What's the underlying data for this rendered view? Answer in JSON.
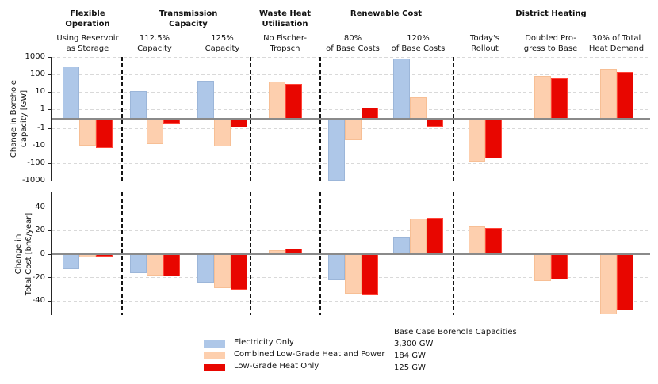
{
  "colors": {
    "electricity_only": "#aec7e8",
    "electricity_only_edge": "#9cb6d9",
    "combined_heat_power": "#fdcfae",
    "combined_heat_power_edge": "#f7bf95",
    "low_grade_heat": "#e80600",
    "low_grade_heat_edge": "#ff4438",
    "grid": "#d9d9d9",
    "zero_line": "#8a8a8a",
    "separator": "#141414"
  },
  "sections": [
    {
      "title": [
        "Flexible",
        "Operation"
      ]
    },
    {
      "title": [
        "Transmission",
        "Capacity"
      ]
    },
    {
      "title": [
        "Waste Heat",
        "Utilisation"
      ]
    },
    {
      "title": [
        "Renewable Cost"
      ]
    },
    {
      "title": [
        "District Heating"
      ]
    }
  ],
  "categories": [
    {
      "label": [
        "Using Reservoir",
        "as Storage"
      ]
    },
    {
      "label": [
        "112.5%",
        "Capacity"
      ]
    },
    {
      "label": [
        "125%",
        "Capacity"
      ]
    },
    {
      "label": [
        "No Fischer-",
        "Tropsch"
      ]
    },
    {
      "label": [
        "80%",
        "of Base Costs"
      ]
    },
    {
      "label": [
        "120%",
        "of Base Costs"
      ]
    },
    {
      "label": [
        "Today's",
        "Rollout"
      ]
    },
    {
      "label": [
        "Doubled Pro-",
        "gress to Base"
      ]
    },
    {
      "label": [
        "30% of Total",
        "Heat Demand"
      ]
    }
  ],
  "chart_data": [
    {
      "type": "bar",
      "ylabel": [
        "Change in Borehole",
        "Capacity [GW]"
      ],
      "scale": "symlog",
      "linthresh": 1,
      "ylim": [
        -1000,
        1000
      ],
      "yticks": [
        1000,
        100,
        10,
        1,
        -1,
        -10,
        -100,
        -1000
      ],
      "grid": true,
      "categories": [
        "Using Reservoir as Storage",
        "112.5% Capacity",
        "125% Capacity",
        "No Fischer-Tropsch",
        "80% of Base Costs",
        "120% of Base Costs",
        "Today's Rollout",
        "Doubled Progress to Base",
        "30% of Total Heat Demand"
      ],
      "series": [
        {
          "name": "Electricity Only",
          "values": [
            300,
            11,
            45,
            null,
            -950,
            800,
            null,
            null,
            null
          ]
        },
        {
          "name": "Combined Low-Grade Heat and Power",
          "values": [
            -10,
            -8,
            -11,
            40,
            -5,
            5,
            -85,
            80,
            200
          ]
        },
        {
          "name": "Low-Grade Heat Only",
          "values": [
            -13,
            -0.5,
            -0.9,
            28,
            1.2,
            -0.8,
            -55,
            60,
            140
          ]
        }
      ]
    },
    {
      "type": "bar",
      "ylabel": [
        "Change in",
        "Total Cost [bn€/year]"
      ],
      "scale": "linear",
      "ylim": [
        -52.5,
        52.5
      ],
      "yticks": [
        40,
        20,
        0,
        -20,
        -40
      ],
      "grid": true,
      "categories": [
        "Using Reservoir as Storage",
        "112.5% Capacity",
        "125% Capacity",
        "No Fischer-Tropsch",
        "80% of Base Costs",
        "120% of Base Costs",
        "Today's Rollout",
        "Doubled Progress to Base",
        "30% of Total Heat Demand"
      ],
      "series": [
        {
          "name": "Electricity Only",
          "values": [
            -13,
            -16,
            -24.5,
            null,
            -22,
            15,
            null,
            null,
            null
          ]
        },
        {
          "name": "Combined Low-Grade Heat and Power",
          "values": [
            -2.5,
            -18.5,
            -29,
            3.5,
            -33.5,
            30,
            23.5,
            -23,
            -51
          ]
        },
        {
          "name": "Low-Grade Heat Only",
          "values": [
            -2,
            -19,
            -30,
            4.5,
            -34.5,
            31,
            22,
            -21.5,
            -48
          ]
        }
      ]
    }
  ],
  "legend": {
    "items": [
      {
        "label": "Electricity Only",
        "color_key": "electricity_only"
      },
      {
        "label": "Combined Low-Grade Heat and Power",
        "color_key": "combined_heat_power"
      },
      {
        "label": "Low-Grade Heat Only",
        "color_key": "low_grade_heat"
      }
    ]
  },
  "note": {
    "title": "Base Case Borehole Capacities",
    "values": [
      "3,300 GW",
      "184 GW",
      "125 GW"
    ]
  }
}
